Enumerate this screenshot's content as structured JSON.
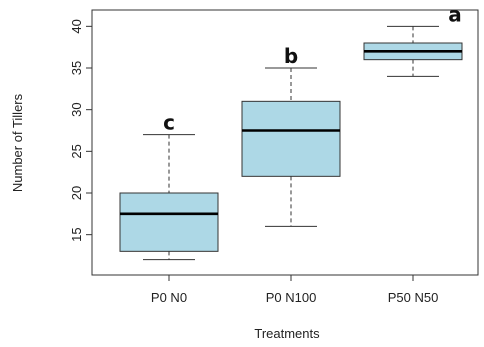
{
  "chart_data": {
    "type": "boxplot",
    "xlabel": "Treatments",
    "ylabel": "Number of Tillers",
    "ylim": [
      11,
      41
    ],
    "yticks": [
      15,
      20,
      25,
      30,
      35,
      40
    ],
    "categories": [
      "P0 N0",
      "P0 N100",
      "P50 N50"
    ],
    "boxes": [
      {
        "category": "P0 N0",
        "min": 12,
        "q1": 13,
        "median": 17.5,
        "q3": 20,
        "max": 27,
        "letter": "c"
      },
      {
        "category": "P0 N100",
        "min": 16,
        "q1": 22,
        "median": 27.5,
        "q3": 31,
        "max": 35,
        "letter": "b"
      },
      {
        "category": "P50 N50",
        "min": 34,
        "q1": 36,
        "median": 37,
        "q3": 38,
        "max": 40,
        "letter": "a"
      }
    ],
    "box_color": "#add8e6",
    "grid": false,
    "legend": "none"
  }
}
